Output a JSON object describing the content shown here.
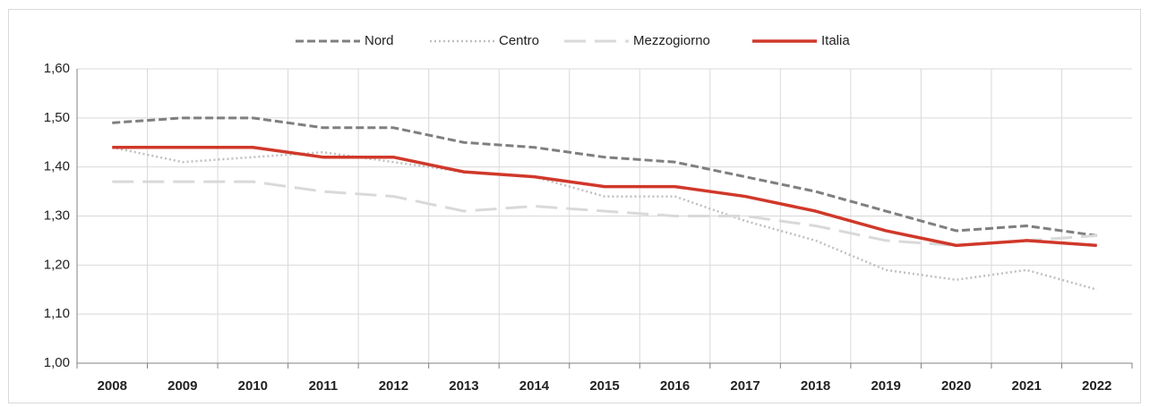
{
  "chart_data": {
    "type": "line",
    "categories": [
      "2008",
      "2009",
      "2010",
      "2011",
      "2012",
      "2013",
      "2014",
      "2015",
      "2016",
      "2017",
      "2018",
      "2019",
      "2020",
      "2021",
      "2022"
    ],
    "series": [
      {
        "name": "Nord",
        "color": "#7f7f7f",
        "style": "dashed",
        "values": [
          1.49,
          1.5,
          1.5,
          1.48,
          1.48,
          1.45,
          1.44,
          1.42,
          1.41,
          1.38,
          1.35,
          1.31,
          1.27,
          1.28,
          1.26
        ]
      },
      {
        "name": "Centro",
        "color": "#bfbfbf",
        "style": "dotted",
        "values": [
          1.44,
          1.41,
          1.42,
          1.43,
          1.41,
          1.39,
          1.38,
          1.34,
          1.34,
          1.29,
          1.25,
          1.19,
          1.17,
          1.19,
          1.15
        ]
      },
      {
        "name": "Mezzogiorno",
        "color": "#d9d9d9",
        "style": "long-dash",
        "values": [
          1.37,
          1.37,
          1.37,
          1.35,
          1.34,
          1.31,
          1.32,
          1.31,
          1.3,
          1.3,
          1.28,
          1.25,
          1.24,
          1.25,
          1.26
        ]
      },
      {
        "name": "Italia",
        "color": "#d0382a",
        "style": "solid",
        "values": [
          1.44,
          1.44,
          1.44,
          1.42,
          1.42,
          1.39,
          1.38,
          1.36,
          1.36,
          1.34,
          1.31,
          1.27,
          1.24,
          1.25,
          1.24
        ]
      }
    ],
    "ylim": [
      1.0,
      1.6
    ],
    "yticks": [
      {
        "value": 1.0,
        "label": "1,00"
      },
      {
        "value": 1.1,
        "label": "1,10"
      },
      {
        "value": 1.2,
        "label": "1,20"
      },
      {
        "value": 1.3,
        "label": "1,30"
      },
      {
        "value": 1.4,
        "label": "1,40"
      },
      {
        "value": 1.5,
        "label": "1,50"
      },
      {
        "value": 1.6,
        "label": "1,60"
      }
    ],
    "grid": true,
    "legend": "top"
  }
}
